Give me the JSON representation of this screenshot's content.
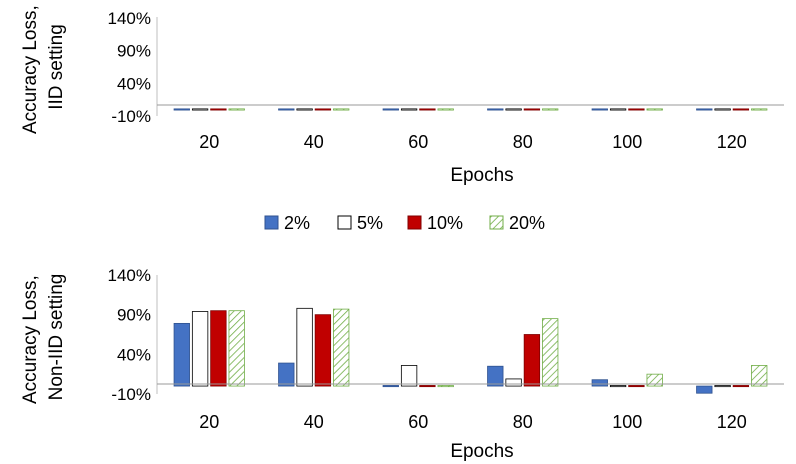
{
  "chart_data": [
    {
      "type": "bar",
      "categories": [
        "20",
        "40",
        "60",
        "80",
        "100",
        "120"
      ],
      "series": [
        {
          "name": "2%",
          "values": [
            -0.5,
            -0.5,
            -1,
            -1.5,
            -1.5,
            -1.5
          ]
        },
        {
          "name": "5%",
          "values": [
            -0.5,
            -0.5,
            -1,
            -0.5,
            0,
            0
          ]
        },
        {
          "name": "10%",
          "values": [
            -1,
            -1,
            -1.5,
            -0.5,
            0,
            0
          ]
        },
        {
          "name": "20%",
          "values": [
            -0.5,
            -0.5,
            -0.5,
            -0.5,
            -0.5,
            -0.5
          ]
        }
      ],
      "xlabel": "Epochs",
      "ylabel": [
        "Accuracy Loss,",
        "IID setting"
      ],
      "yticks": [
        "140%",
        "90%",
        "40%",
        "-10%"
      ],
      "ylim": [
        -10,
        140
      ],
      "grid": false
    },
    {
      "type": "bar",
      "categories": [
        "20",
        "40",
        "60",
        "80",
        "100",
        "120"
      ],
      "series": [
        {
          "name": "2%",
          "values": [
            79,
            29,
            0,
            25,
            8,
            -9
          ]
        },
        {
          "name": "5%",
          "values": [
            94,
            98,
            26,
            9,
            0,
            0
          ]
        },
        {
          "name": "10%",
          "values": [
            95,
            90,
            1.5,
            65,
            1.5,
            1.5
          ]
        },
        {
          "name": "20%",
          "values": [
            95,
            97,
            0,
            85,
            15,
            26
          ]
        }
      ],
      "xlabel": "Epochs",
      "ylabel": [
        "Accuracy Loss,",
        "Non-IID setting"
      ],
      "yticks": [
        "140%",
        "90%",
        "40%",
        "-10%"
      ],
      "ylim": [
        -10,
        140
      ],
      "grid": false
    }
  ],
  "legend": {
    "position": "between-charts",
    "items": [
      {
        "label": "2%",
        "fill": "#4472c4",
        "stroke": "#2f528f"
      },
      {
        "label": "5%",
        "fill": "#ffffff",
        "stroke": "#000000"
      },
      {
        "label": "10%",
        "fill": "#c00000",
        "stroke": "#7f0000"
      },
      {
        "label": "20%",
        "fill": "hatch-green",
        "stroke": "#70ad47"
      }
    ]
  },
  "colors": {
    "s2": "#4472c4",
    "s5": "#ffffff",
    "s10": "#c00000",
    "s20_line": "#70ad47"
  }
}
